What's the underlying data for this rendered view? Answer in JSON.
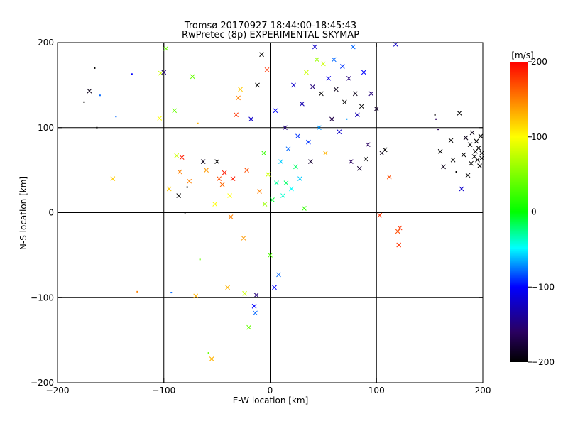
{
  "chart_data": {
    "type": "scatter",
    "title": "Tromsø 20170927 18:44:00-18:45:43",
    "subtitle": "RwPretec (8p) EXPERIMENTAL SKYMAP",
    "xlabel": "E-W location [km]",
    "ylabel": "N-S location [km]",
    "xlim": [
      -200,
      200
    ],
    "ylim": [
      -200,
      200
    ],
    "x_ticks": [
      -200,
      -100,
      0,
      100,
      200
    ],
    "y_ticks": [
      -200,
      -100,
      0,
      100,
      200
    ],
    "x_tick_labels": [
      "−200",
      "−100",
      "0",
      "100",
      "200"
    ],
    "y_tick_labels": [
      "−200",
      "−100",
      "0",
      "100",
      "200"
    ],
    "grid": true,
    "grid_lines": [
      -100,
      0,
      100
    ],
    "colorbar": {
      "label": "[m/s]",
      "range": [
        -200,
        200
      ],
      "ticks": [
        200,
        100,
        0,
        -100,
        -200
      ],
      "tick_labels": [
        "200",
        "100",
        "0",
        "−100",
        "−200"
      ]
    },
    "markers": {
      "small": "dot",
      "large": "x"
    },
    "series": [
      {
        "points": [
          [
            -175,
            130,
            -200,
            "dot"
          ],
          [
            -170,
            143,
            -190,
            "x"
          ],
          [
            -165,
            170,
            -200,
            "dot"
          ],
          [
            -163,
            100,
            -200,
            "dot"
          ],
          [
            -160,
            138,
            -80,
            "dot"
          ],
          [
            -148,
            40,
            120,
            "x"
          ],
          [
            -145,
            113,
            -80,
            "dot"
          ],
          [
            -130,
            163,
            -100,
            "dot"
          ],
          [
            -125,
            -93,
            150,
            "dot"
          ],
          [
            -103,
            164,
            80,
            "x"
          ],
          [
            -100,
            165,
            -150,
            "x"
          ],
          [
            -104,
            111,
            100,
            "x"
          ],
          [
            -98,
            193,
            40,
            "x"
          ],
          [
            -95,
            28,
            120,
            "x"
          ],
          [
            -93,
            -94,
            -80,
            "dot"
          ],
          [
            -90,
            120,
            40,
            "x"
          ],
          [
            -88,
            67,
            80,
            "x"
          ],
          [
            -85,
            48,
            150,
            "x"
          ],
          [
            -86,
            20,
            -200,
            "x"
          ],
          [
            -83,
            65,
            190,
            "x"
          ],
          [
            -80,
            0,
            -200,
            "dot"
          ],
          [
            -78,
            30,
            -200,
            "dot"
          ],
          [
            -76,
            37,
            150,
            "x"
          ],
          [
            -73,
            160,
            40,
            "x"
          ],
          [
            -70,
            -98,
            130,
            "x"
          ],
          [
            -68,
            105,
            130,
            "dot"
          ],
          [
            -66,
            -55,
            40,
            "dot"
          ],
          [
            -63,
            60,
            -190,
            "x"
          ],
          [
            -60,
            50,
            140,
            "x"
          ],
          [
            -58,
            -165,
            40,
            "dot"
          ],
          [
            -55,
            -172,
            130,
            "x"
          ],
          [
            -52,
            10,
            100,
            "x"
          ],
          [
            -50,
            60,
            -200,
            "x"
          ],
          [
            -48,
            40,
            170,
            "x"
          ],
          [
            -45,
            33,
            160,
            "x"
          ],
          [
            -43,
            47,
            190,
            "x"
          ],
          [
            -40,
            -88,
            130,
            "x"
          ],
          [
            -38,
            20,
            100,
            "x"
          ],
          [
            -37,
            -5,
            150,
            "x"
          ],
          [
            -35,
            40,
            190,
            "x"
          ],
          [
            -32,
            115,
            180,
            "x"
          ],
          [
            -30,
            135,
            150,
            "x"
          ],
          [
            -28,
            145,
            120,
            "x"
          ],
          [
            -25,
            -30,
            140,
            "x"
          ],
          [
            -24,
            -95,
            80,
            "x"
          ],
          [
            -22,
            50,
            170,
            "x"
          ],
          [
            -20,
            -135,
            40,
            "x"
          ],
          [
            -18,
            110,
            -120,
            "x"
          ],
          [
            -15,
            -110,
            -100,
            "x"
          ],
          [
            -14,
            -118,
            -80,
            "x"
          ],
          [
            -13,
            -97,
            -150,
            "x"
          ],
          [
            -12,
            150,
            -200,
            "x"
          ],
          [
            -10,
            25,
            150,
            "x"
          ],
          [
            -8,
            186,
            -200,
            "x"
          ],
          [
            -6,
            70,
            20,
            "x"
          ],
          [
            -5,
            10,
            60,
            "x"
          ],
          [
            -3,
            168,
            180,
            "x"
          ],
          [
            -2,
            45,
            80,
            "x"
          ],
          [
            0,
            -50,
            30,
            "x"
          ],
          [
            2,
            15,
            -10,
            "x"
          ],
          [
            4,
            -88,
            -100,
            "x"
          ],
          [
            5,
            120,
            -100,
            "x"
          ],
          [
            6,
            35,
            -30,
            "x"
          ],
          [
            8,
            -73,
            -80,
            "x"
          ],
          [
            10,
            60,
            -60,
            "x"
          ],
          [
            12,
            20,
            -40,
            "x"
          ],
          [
            14,
            100,
            -150,
            "x"
          ],
          [
            15,
            35,
            -20,
            "x"
          ],
          [
            17,
            75,
            -80,
            "x"
          ],
          [
            20,
            28,
            -50,
            "x"
          ],
          [
            22,
            150,
            -120,
            "x"
          ],
          [
            24,
            54,
            -20,
            "x"
          ],
          [
            26,
            90,
            -90,
            "x"
          ],
          [
            28,
            40,
            -60,
            "x"
          ],
          [
            30,
            128,
            -130,
            "x"
          ],
          [
            32,
            5,
            20,
            "x"
          ],
          [
            34,
            165,
            80,
            "x"
          ],
          [
            36,
            83,
            -90,
            "x"
          ],
          [
            38,
            60,
            -180,
            "x"
          ],
          [
            40,
            148,
            -150,
            "x"
          ],
          [
            42,
            195,
            -120,
            "x"
          ],
          [
            44,
            180,
            60,
            "x"
          ],
          [
            46,
            100,
            -70,
            "x"
          ],
          [
            48,
            140,
            -200,
            "x"
          ],
          [
            50,
            175,
            80,
            "x"
          ],
          [
            52,
            70,
            130,
            "x"
          ],
          [
            55,
            158,
            -110,
            "x"
          ],
          [
            58,
            110,
            -170,
            "x"
          ],
          [
            60,
            180,
            -80,
            "x"
          ],
          [
            62,
            145,
            -190,
            "x"
          ],
          [
            65,
            95,
            -120,
            "x"
          ],
          [
            68,
            172,
            -90,
            "x"
          ],
          [
            70,
            130,
            -200,
            "x"
          ],
          [
            72,
            110,
            -70,
            "dot"
          ],
          [
            74,
            158,
            -150,
            "x"
          ],
          [
            76,
            60,
            -160,
            "x"
          ],
          [
            78,
            195,
            -80,
            "x"
          ],
          [
            80,
            140,
            -190,
            "x"
          ],
          [
            82,
            115,
            -130,
            "x"
          ],
          [
            84,
            52,
            -180,
            "x"
          ],
          [
            86,
            125,
            -200,
            "x"
          ],
          [
            88,
            165,
            -100,
            "x"
          ],
          [
            90,
            63,
            -200,
            "x"
          ],
          [
            92,
            80,
            -160,
            "x"
          ],
          [
            95,
            140,
            -150,
            "x"
          ],
          [
            100,
            122,
            -180,
            "x"
          ],
          [
            103,
            -3,
            180,
            "x"
          ],
          [
            105,
            70,
            -190,
            "x"
          ],
          [
            108,
            74,
            -200,
            "x"
          ],
          [
            112,
            42,
            170,
            "x"
          ],
          [
            118,
            198,
            -120,
            "x"
          ],
          [
            122,
            -18,
            180,
            "x"
          ],
          [
            120,
            -22,
            170,
            "x"
          ],
          [
            121,
            -38,
            180,
            "x"
          ],
          [
            155,
            115,
            -200,
            "dot"
          ],
          [
            156,
            110,
            -160,
            "dot"
          ],
          [
            158,
            98,
            -160,
            "dot"
          ],
          [
            160,
            72,
            -200,
            "x"
          ],
          [
            163,
            54,
            -190,
            "x"
          ],
          [
            170,
            85,
            -200,
            "x"
          ],
          [
            172,
            62,
            -200,
            "x"
          ],
          [
            175,
            48,
            -200,
            "dot"
          ],
          [
            178,
            117,
            -200,
            "x"
          ],
          [
            180,
            28,
            -120,
            "x"
          ],
          [
            182,
            68,
            -200,
            "x"
          ],
          [
            184,
            88,
            -190,
            "x"
          ],
          [
            186,
            44,
            -200,
            "x"
          ],
          [
            188,
            80,
            -200,
            "x"
          ],
          [
            189,
            58,
            -200,
            "x"
          ],
          [
            190,
            94,
            -190,
            "x"
          ],
          [
            192,
            66,
            -200,
            "x"
          ],
          [
            193,
            72,
            -200,
            "x"
          ],
          [
            194,
            84,
            -200,
            "x"
          ],
          [
            195,
            62,
            -200,
            "x"
          ],
          [
            196,
            76,
            -200,
            "x"
          ],
          [
            197,
            55,
            -200,
            "x"
          ],
          [
            198,
            90,
            -200,
            "x"
          ],
          [
            199,
            70,
            -200,
            "x"
          ],
          [
            199,
            64,
            -200,
            "x"
          ]
        ]
      }
    ]
  }
}
